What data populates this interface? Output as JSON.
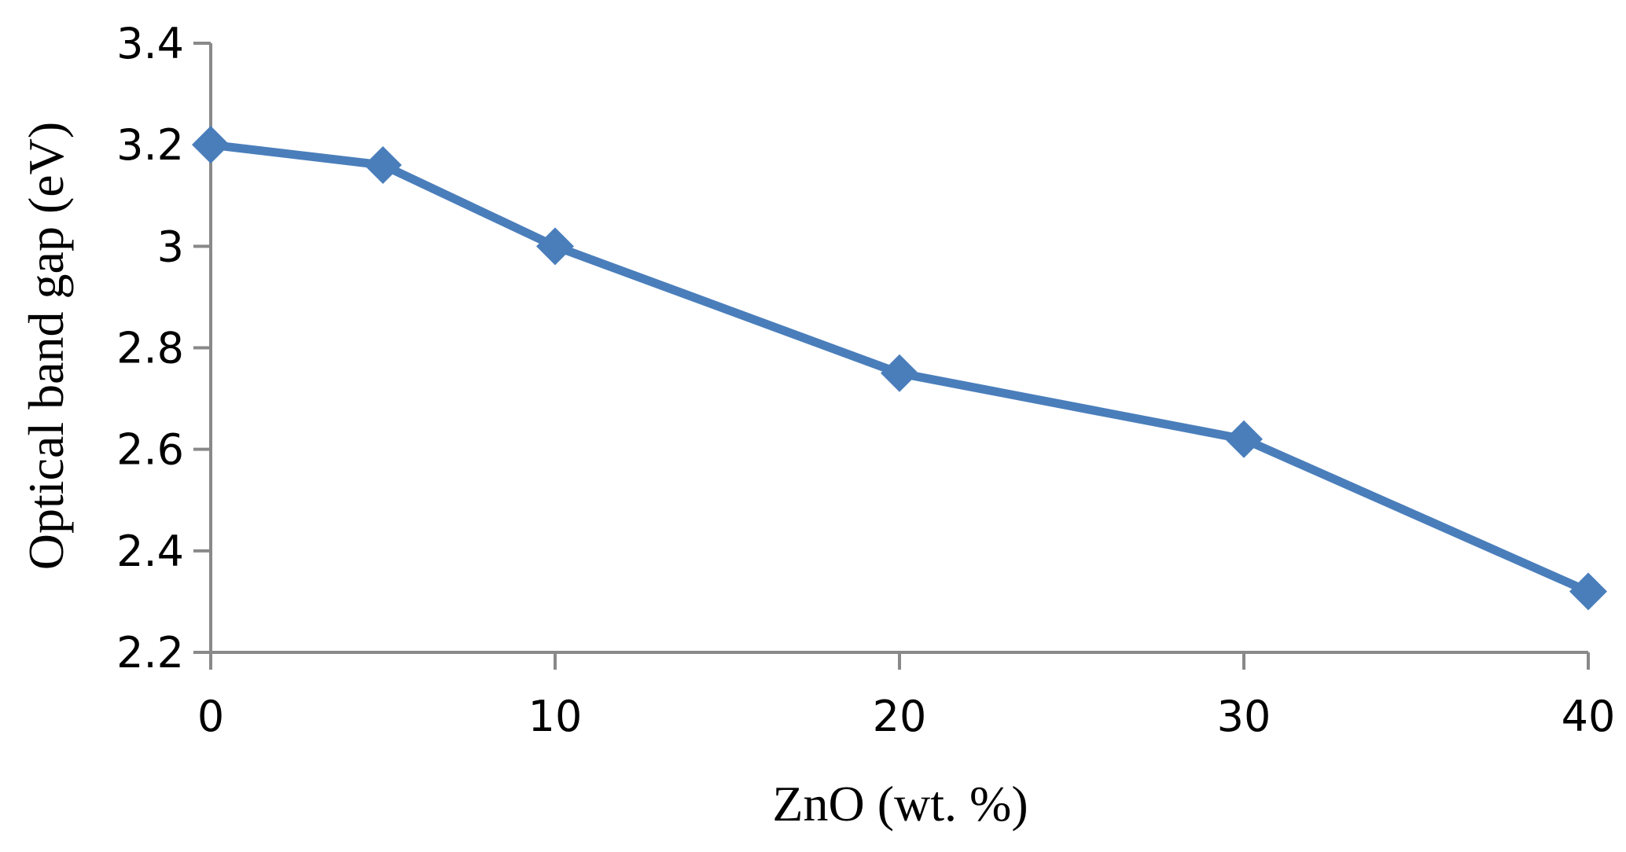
{
  "chart_data": {
    "type": "line",
    "title": "",
    "xlabel": "ZnO (wt. %)",
    "ylabel": "Optical band gap (eV)",
    "xlim": [
      0,
      40
    ],
    "ylim": [
      2.2,
      3.4
    ],
    "xticks": [
      0,
      10,
      20,
      30,
      40
    ],
    "xtick_labels": [
      "0",
      "10",
      "20",
      "30",
      "40"
    ],
    "yticks": [
      2.2,
      2.4,
      2.6,
      2.8,
      3.0,
      3.2,
      3.4
    ],
    "ytick_labels": [
      "2.2",
      "2.4",
      "2.6",
      "2.8",
      "3",
      "3.2",
      "3.4"
    ],
    "grid": false,
    "legend": "none",
    "marker": "diamond",
    "series": [
      {
        "color": "#4a7ebb",
        "x": [
          0,
          5,
          10,
          20,
          30,
          40
        ],
        "y": [
          3.2,
          3.16,
          3.0,
          2.75,
          2.62,
          2.32
        ]
      }
    ],
    "axis_color": "#898989"
  }
}
